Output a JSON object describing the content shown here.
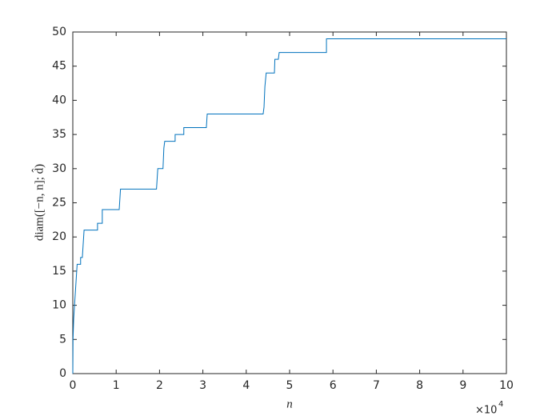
{
  "chart_data": {
    "type": "line",
    "x_label": "n",
    "y_label": "diam([−n, n]; d̂)",
    "x_scale_base": "×10",
    "x_scale_exponent": "4",
    "xlim": [
      0,
      10
    ],
    "xticks": [
      0,
      1,
      2,
      3,
      4,
      5,
      6,
      7,
      8,
      9,
      10
    ],
    "ylim": [
      0,
      50
    ],
    "yticks": [
      0,
      5,
      10,
      15,
      20,
      25,
      30,
      35,
      40,
      45,
      50
    ],
    "grid": false,
    "series": [
      {
        "color": "#0072bd",
        "x": [
          0,
          0.005,
          0.02,
          0.04,
          0.07,
          0.1,
          0.18,
          0.18,
          0.22,
          0.26,
          0.57,
          0.57,
          0.68,
          0.68,
          1.07,
          1.1,
          1.93,
          1.96,
          2.08,
          2.1,
          2.12,
          2.36,
          2.36,
          2.56,
          2.56,
          3.08,
          3.1,
          4.39,
          4.41,
          4.43,
          4.46,
          4.65,
          4.66,
          4.74,
          4.76,
          5.85,
          5.85,
          10
        ],
        "values": [
          0,
          5,
          8,
          10,
          13,
          16,
          16,
          17,
          17,
          21,
          21,
          22,
          22,
          24,
          24,
          27,
          27,
          30,
          30,
          33,
          34,
          34,
          35,
          35,
          36,
          36,
          38,
          38,
          39,
          42,
          44,
          44,
          46,
          46,
          47,
          47,
          49,
          49
        ]
      }
    ]
  }
}
